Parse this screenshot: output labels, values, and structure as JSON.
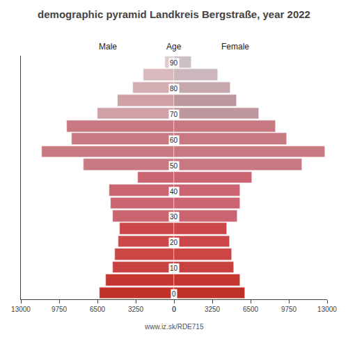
{
  "chart_data": {
    "type": "bar",
    "orientation": "horizontal",
    "title": "demographic pyramid Landkreis Bergstraße, year 2022",
    "ylabel": "Age",
    "y": [
      0,
      5,
      10,
      15,
      20,
      25,
      30,
      35,
      40,
      45,
      50,
      55,
      60,
      65,
      70,
      75,
      80,
      85,
      90
    ],
    "series": [
      {
        "name": "Male",
        "colors": [
          "#c0312a",
          "#c53630",
          "#c94040",
          "#cc4646",
          "#cc4848",
          "#cc4848",
          "#c96470",
          "#c96470",
          "#c96470",
          "#c96470",
          "#c87880",
          "#c87880",
          "#c87880",
          "#c87880",
          "#cfa0a6",
          "#cfa0a6",
          "#d4aeB2",
          "#d8baBe",
          "#e0cccf"
        ],
        "values": [
          6300,
          5800,
          5200,
          5000,
          4700,
          4600,
          5200,
          5400,
          5500,
          3100,
          7700,
          11200,
          8700,
          9100,
          6500,
          4800,
          3500,
          2600,
          750
        ]
      },
      {
        "name": "Female",
        "colors": [
          "#c0312a",
          "#c53630",
          "#c94040",
          "#cc4646",
          "#cc4848",
          "#cc4848",
          "#c96470",
          "#c96470",
          "#c96470",
          "#c96470",
          "#c87880",
          "#c87880",
          "#c87880",
          "#c87880",
          "#be969e",
          "#be969e",
          "#c4a8ae",
          "#ccb8bc",
          "#cdc0c4"
        ],
        "values": [
          6000,
          5600,
          5100,
          4900,
          4700,
          4500,
          5400,
          5600,
          5600,
          6600,
          10900,
          12800,
          9600,
          8600,
          7200,
          5300,
          4800,
          3700,
          1500
        ]
      }
    ],
    "xlim": [
      0,
      13000
    ],
    "xticks": [
      0,
      3250,
      6500,
      9750,
      13000
    ],
    "ylim": [
      0,
      95
    ],
    "yticks": [
      0,
      10,
      20,
      30,
      40,
      50,
      60,
      70,
      80,
      90
    ],
    "grid": false,
    "annotations": [
      "www.iz.sk/RDE715"
    ]
  }
}
